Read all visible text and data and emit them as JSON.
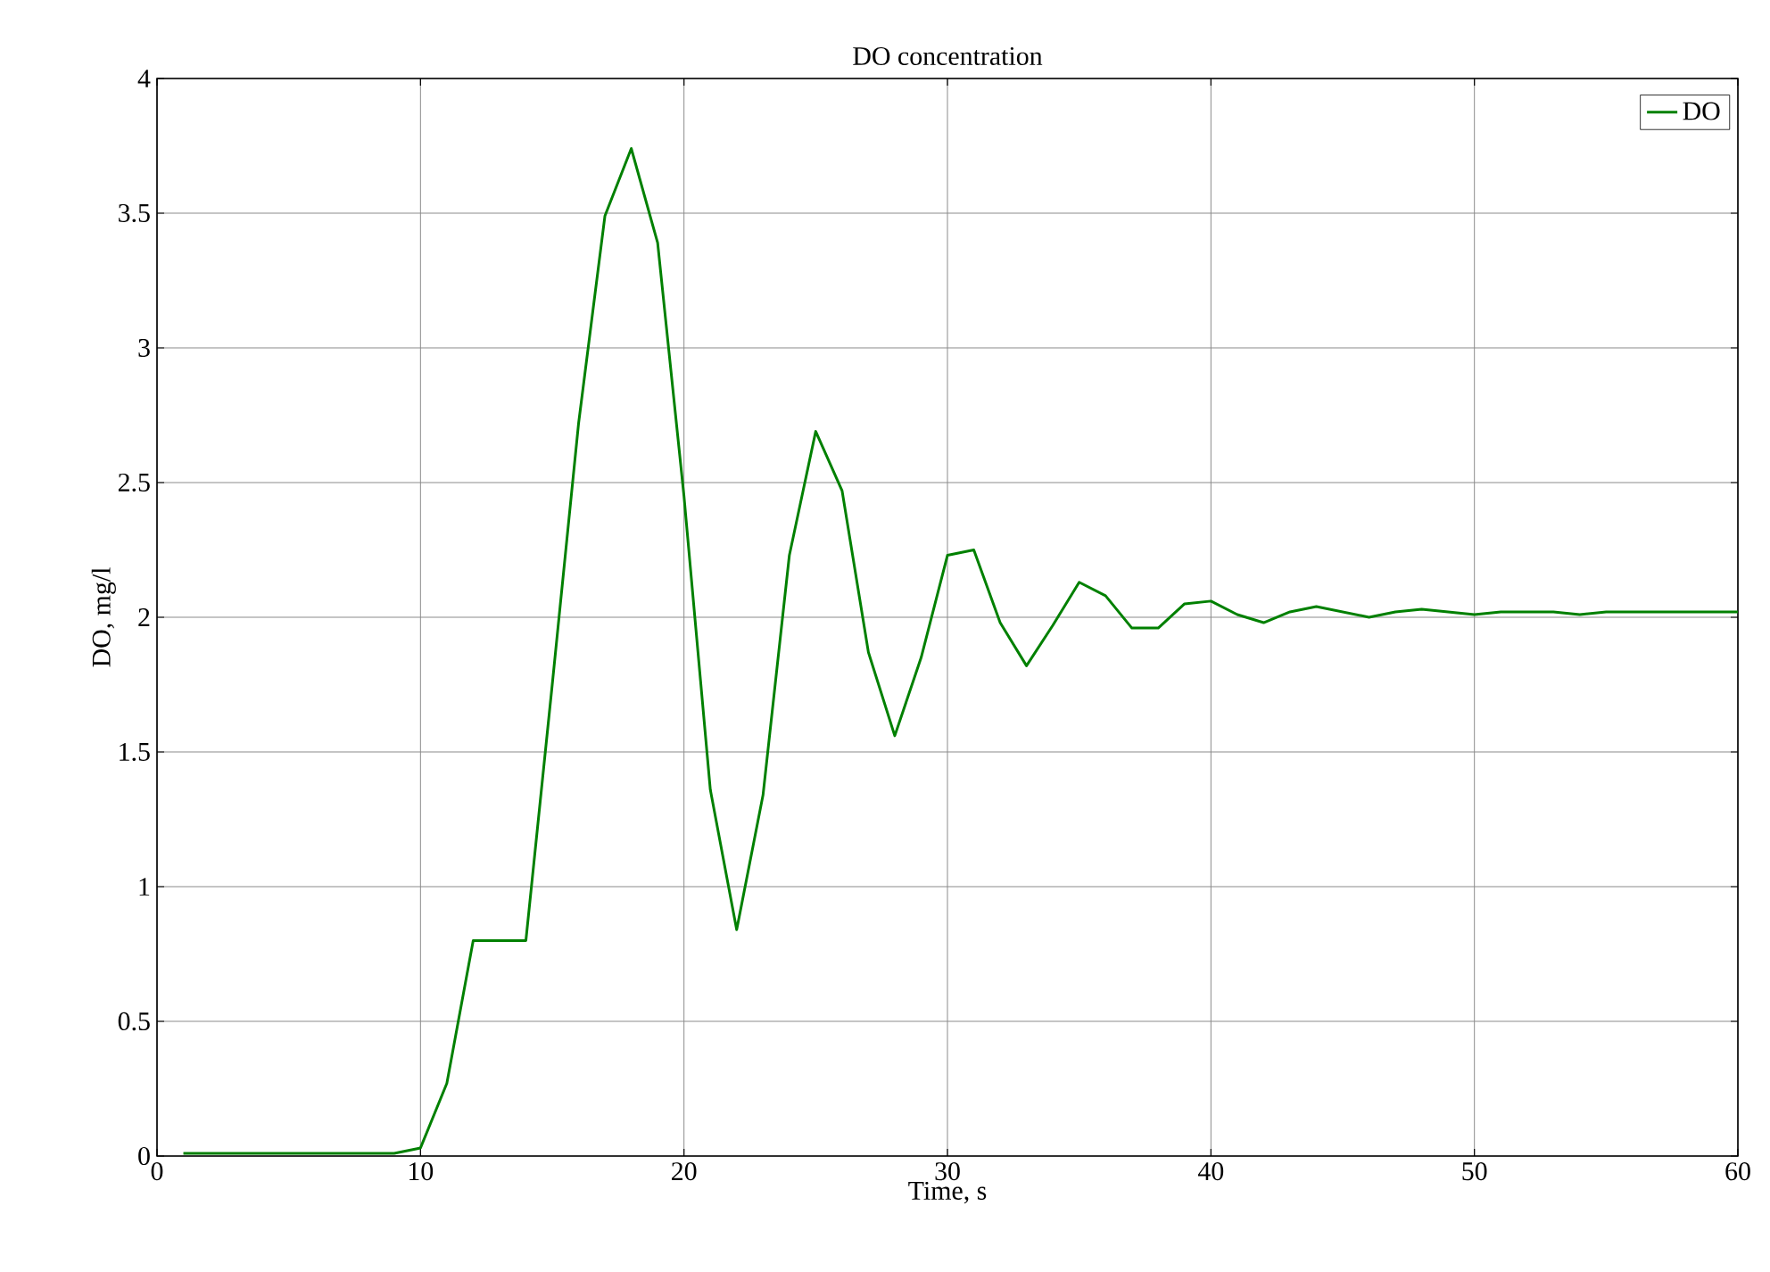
{
  "chart_data": {
    "type": "line",
    "title": "DO concentration",
    "xlabel": "Time, s",
    "ylabel": "DO, mg/l",
    "x": [
      1,
      2,
      3,
      4,
      5,
      6,
      7,
      8,
      9,
      10,
      11,
      12,
      13,
      14,
      15,
      16,
      17,
      18,
      19,
      20,
      21,
      22,
      23,
      24,
      25,
      26,
      27,
      28,
      29,
      30,
      31,
      32,
      33,
      34,
      35,
      36,
      37,
      38,
      39,
      40,
      41,
      42,
      43,
      44,
      45,
      46,
      47,
      48,
      49,
      50,
      51,
      52,
      53,
      54,
      55,
      56,
      57,
      58,
      59,
      60
    ],
    "series": [
      {
        "name": "DO",
        "color": "#008000",
        "values": [
          0.01,
          0.01,
          0.01,
          0.01,
          0.01,
          0.01,
          0.01,
          0.01,
          0.01,
          0.03,
          0.27,
          0.8,
          0.8,
          0.8,
          1.75,
          2.72,
          3.49,
          3.74,
          3.39,
          2.45,
          1.36,
          0.84,
          1.34,
          2.23,
          2.69,
          2.47,
          1.87,
          1.56,
          1.85,
          2.23,
          2.25,
          1.98,
          1.82,
          1.97,
          2.13,
          2.08,
          1.96,
          1.96,
          2.05,
          2.06,
          2.01,
          1.98,
          2.02,
          2.04,
          2.02,
          2.0,
          2.02,
          2.03,
          2.02,
          2.01,
          2.02,
          2.02,
          2.02,
          2.01,
          2.02,
          2.02,
          2.02,
          2.02,
          2.02,
          2.02
        ]
      }
    ],
    "xlim": [
      0,
      60
    ],
    "ylim": [
      0,
      4
    ],
    "xticks": [
      0,
      10,
      20,
      30,
      40,
      50,
      60
    ],
    "yticks": [
      0,
      0.5,
      1,
      1.5,
      2,
      2.5,
      3,
      3.5,
      4
    ],
    "grid": true,
    "legend": "top right",
    "marker": "none",
    "line_style": "solid"
  }
}
